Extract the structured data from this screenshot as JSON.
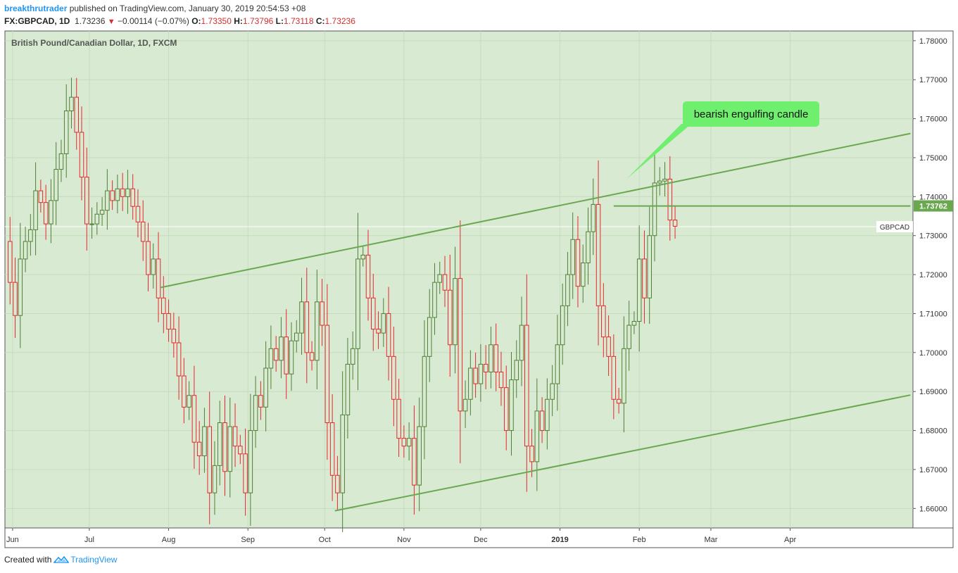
{
  "header": {
    "author": "breakthrutrader",
    "published_text": " published on TradingView.com, January 30, 2019 20:54:53 +08",
    "symbol": "FX:GBPCAD, 1D",
    "last": "1.73236",
    "change": "−0.00114 (−0.07%)",
    "o_label": "O:",
    "o_value": "1.73350",
    "h_label": "H:",
    "h_value": "1.73796",
    "l_label": "L:",
    "l_value": "1.73118",
    "c_label": "C:",
    "c_value": "1.73236"
  },
  "footer": {
    "created_with": "Created with",
    "brand": "TradingView"
  },
  "colors": {
    "background": "#d9ead3",
    "up": "#4f7f34",
    "down": "#e8262b",
    "trendline": "#6aa84f",
    "callout": "#6ef06e",
    "price_badge": "#6aa84f"
  },
  "chart_data": {
    "type": "candlestick",
    "title": "British Pound/Canadian Dollar, 1D, FXCM",
    "ylim": [
      1.655,
      1.7825
    ],
    "y_ticks": [
      "1.78000",
      "1.77000",
      "1.76000",
      "1.75000",
      "1.74000",
      "1.73000",
      "1.72000",
      "1.71000",
      "1.70000",
      "1.69000",
      "1.68000",
      "1.67000",
      "1.66000"
    ],
    "x_labels": [
      {
        "label": "Jun",
        "day": 3
      },
      {
        "label": "Jul",
        "day": 33
      },
      {
        "label": "Aug",
        "day": 64
      },
      {
        "label": "Sep",
        "day": 95
      },
      {
        "label": "Oct",
        "day": 125
      },
      {
        "label": "Nov",
        "day": 156
      },
      {
        "label": "Dec",
        "day": 186
      },
      {
        "label": "2019",
        "day": 217,
        "bold": true
      },
      {
        "label": "Feb",
        "day": 248
      },
      {
        "label": "Mar",
        "day": 276
      },
      {
        "label": "Apr",
        "day": 307
      }
    ],
    "x_domain": [
      0,
      355
    ],
    "price_label": "1.73762",
    "symbol_label": "GBPCAD",
    "symbol_label_value": 1.7323,
    "annotation": {
      "text": "bearish engulfing candle",
      "target_day": 243,
      "target_value": 1.7445
    },
    "trendlines": [
      {
        "name": "upper",
        "from": [
          61,
          1.7167
        ],
        "to": [
          354,
          1.7562
        ]
      },
      {
        "name": "lower",
        "from": [
          129,
          1.6594
        ],
        "to": [
          354,
          1.6891
        ]
      },
      {
        "name": "support",
        "from": [
          238,
          1.7376
        ],
        "to": [
          354,
          1.7376
        ]
      }
    ],
    "closes": [
      [
        0,
        1.7285
      ],
      [
        2,
        1.718
      ],
      [
        4,
        1.7095
      ],
      [
        6,
        1.724
      ],
      [
        8,
        1.7285
      ],
      [
        10,
        1.7315
      ],
      [
        12,
        1.7415
      ],
      [
        14,
        1.7385
      ],
      [
        16,
        1.733
      ],
      [
        18,
        1.739
      ],
      [
        20,
        1.747
      ],
      [
        22,
        1.751
      ],
      [
        24,
        1.762
      ],
      [
        26,
        1.7655
      ],
      [
        28,
        1.7565
      ],
      [
        30,
        1.745
      ],
      [
        32,
        1.733
      ],
      [
        34,
        1.733
      ],
      [
        36,
        1.7355
      ],
      [
        38,
        1.7365
      ],
      [
        40,
        1.7415
      ],
      [
        42,
        1.739
      ],
      [
        44,
        1.742
      ],
      [
        46,
        1.74
      ],
      [
        48,
        1.742
      ],
      [
        50,
        1.7375
      ],
      [
        52,
        1.7335
      ],
      [
        54,
        1.7285
      ],
      [
        56,
        1.72
      ],
      [
        58,
        1.724
      ],
      [
        60,
        1.714
      ],
      [
        62,
        1.71
      ],
      [
        64,
        1.706
      ],
      [
        66,
        1.7025
      ],
      [
        68,
        1.694
      ],
      [
        70,
        1.686
      ],
      [
        72,
        1.689
      ],
      [
        74,
        1.677
      ],
      [
        76,
        1.6735
      ],
      [
        78,
        1.681
      ],
      [
        80,
        1.664
      ],
      [
        82,
        1.671
      ],
      [
        84,
        1.682
      ],
      [
        86,
        1.6695
      ],
      [
        88,
        1.681
      ],
      [
        90,
        1.676
      ],
      [
        92,
        1.674
      ],
      [
        94,
        1.664
      ],
      [
        96,
        1.68
      ],
      [
        98,
        1.689
      ],
      [
        100,
        1.686
      ],
      [
        102,
        1.696
      ],
      [
        104,
        1.701
      ],
      [
        106,
        1.698
      ],
      [
        108,
        1.704
      ],
      [
        110,
        1.6945
      ],
      [
        112,
        1.703
      ],
      [
        114,
        1.705
      ],
      [
        116,
        1.713
      ],
      [
        118,
        1.7
      ],
      [
        120,
        1.698
      ],
      [
        122,
        1.713
      ],
      [
        124,
        1.707
      ],
      [
        126,
        1.682
      ],
      [
        128,
        1.6685
      ],
      [
        130,
        1.664
      ],
      [
        132,
        1.684
      ],
      [
        134,
        1.697
      ],
      [
        136,
        1.701
      ],
      [
        138,
        1.724
      ],
      [
        140,
        1.725
      ],
      [
        142,
        1.714
      ],
      [
        144,
        1.706
      ],
      [
        146,
        1.705
      ],
      [
        148,
        1.71
      ],
      [
        150,
        1.699
      ],
      [
        152,
        1.688
      ],
      [
        154,
        1.678
      ],
      [
        156,
        1.676
      ],
      [
        158,
        1.678
      ],
      [
        160,
        1.666
      ],
      [
        162,
        1.681
      ],
      [
        164,
        1.699
      ],
      [
        166,
        1.709
      ],
      [
        168,
        1.718
      ],
      [
        170,
        1.72
      ],
      [
        172,
        1.716
      ],
      [
        174,
        1.702
      ],
      [
        176,
        1.719
      ],
      [
        178,
        1.685
      ],
      [
        180,
        1.688
      ],
      [
        182,
        1.696
      ],
      [
        184,
        1.692
      ],
      [
        186,
        1.697
      ],
      [
        188,
        1.695
      ],
      [
        190,
        1.702
      ],
      [
        192,
        1.695
      ],
      [
        194,
        1.691
      ],
      [
        196,
        1.68
      ],
      [
        198,
        1.693
      ],
      [
        200,
        1.698
      ],
      [
        202,
        1.707
      ],
      [
        204,
        1.676
      ],
      [
        206,
        1.672
      ],
      [
        208,
        1.685
      ],
      [
        210,
        1.68
      ],
      [
        212,
        1.688
      ],
      [
        214,
        1.692
      ],
      [
        216,
        1.702
      ],
      [
        218,
        1.712
      ],
      [
        220,
        1.72
      ],
      [
        222,
        1.729
      ],
      [
        224,
        1.717
      ],
      [
        226,
        1.723
      ],
      [
        228,
        1.731
      ],
      [
        230,
        1.738
      ],
      [
        232,
        1.712
      ],
      [
        234,
        1.704
      ],
      [
        236,
        1.699
      ],
      [
        238,
        1.688
      ],
      [
        240,
        1.687
      ],
      [
        242,
        1.701
      ],
      [
        244,
        1.707
      ],
      [
        246,
        1.708
      ],
      [
        248,
        1.724
      ],
      [
        250,
        1.714
      ],
      [
        252,
        1.73
      ],
      [
        254,
        1.7435
      ],
      [
        256,
        1.744
      ],
      [
        258,
        1.7445
      ],
      [
        260,
        1.734
      ],
      [
        262,
        1.7324
      ]
    ]
  }
}
